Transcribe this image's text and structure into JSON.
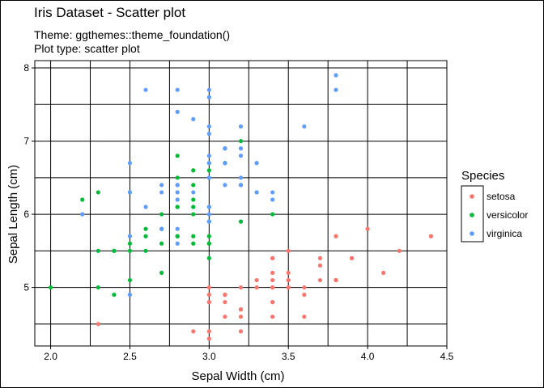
{
  "chart_data": {
    "type": "scatter",
    "title": "Iris Dataset - Scatter plot",
    "subtitle_lines": [
      "Theme: ggthemes::theme_foundation()",
      "Plot type: scatter plot"
    ],
    "xlabel": "Sepal Width (cm)",
    "ylabel": "Sepal Length (cm)",
    "xlim": [
      1.9,
      4.5
    ],
    "ylim": [
      4.2,
      8.1
    ],
    "x_ticks": [
      2.0,
      2.5,
      3.0,
      3.5,
      4.0,
      4.5
    ],
    "x_tick_labels": [
      "2.0",
      "2.5",
      "3.0",
      "3.5",
      "4.0",
      "4.5"
    ],
    "y_ticks": [
      5,
      6,
      7,
      8
    ],
    "y_tick_labels": [
      "5",
      "6",
      "7",
      "8"
    ],
    "grid": true,
    "legend_title": "Species",
    "legend_position": "right",
    "series": [
      {
        "name": "setosa",
        "color": "#F8766D",
        "points": [
          [
            3.5,
            5.1
          ],
          [
            3.0,
            4.9
          ],
          [
            3.2,
            4.7
          ],
          [
            3.1,
            4.6
          ],
          [
            3.6,
            5.0
          ],
          [
            3.9,
            5.4
          ],
          [
            3.4,
            4.6
          ],
          [
            3.4,
            5.0
          ],
          [
            2.9,
            4.4
          ],
          [
            3.1,
            4.9
          ],
          [
            3.7,
            5.4
          ],
          [
            3.4,
            4.8
          ],
          [
            3.0,
            4.8
          ],
          [
            3.0,
            4.3
          ],
          [
            4.0,
            5.8
          ],
          [
            4.4,
            5.7
          ],
          [
            3.9,
            5.4
          ],
          [
            3.5,
            5.1
          ],
          [
            3.8,
            5.7
          ],
          [
            3.8,
            5.1
          ],
          [
            3.4,
            5.4
          ],
          [
            3.7,
            5.1
          ],
          [
            3.6,
            4.6
          ],
          [
            3.3,
            5.1
          ],
          [
            3.4,
            4.8
          ],
          [
            3.0,
            5.0
          ],
          [
            3.4,
            5.0
          ],
          [
            3.5,
            5.2
          ],
          [
            3.4,
            5.2
          ],
          [
            3.2,
            4.7
          ],
          [
            3.1,
            4.8
          ],
          [
            3.4,
            5.4
          ],
          [
            4.1,
            5.2
          ],
          [
            4.2,
            5.5
          ],
          [
            3.1,
            4.9
          ],
          [
            3.2,
            5.0
          ],
          [
            3.5,
            5.5
          ],
          [
            3.6,
            4.9
          ],
          [
            3.0,
            4.4
          ],
          [
            3.4,
            5.1
          ],
          [
            3.5,
            5.0
          ],
          [
            2.3,
            4.5
          ],
          [
            3.2,
            4.4
          ],
          [
            3.5,
            5.0
          ],
          [
            3.8,
            5.1
          ],
          [
            3.0,
            4.8
          ],
          [
            3.8,
            5.1
          ],
          [
            3.2,
            4.6
          ],
          [
            3.7,
            5.3
          ],
          [
            3.3,
            5.0
          ]
        ]
      },
      {
        "name": "versicolor",
        "color": "#00BA38",
        "points": [
          [
            3.2,
            7.0
          ],
          [
            3.2,
            6.4
          ],
          [
            3.1,
            6.9
          ],
          [
            2.3,
            5.5
          ],
          [
            2.8,
            6.5
          ],
          [
            2.8,
            5.7
          ],
          [
            3.3,
            6.3
          ],
          [
            2.4,
            4.9
          ],
          [
            2.9,
            6.6
          ],
          [
            2.7,
            5.2
          ],
          [
            2.0,
            5.0
          ],
          [
            3.0,
            5.9
          ],
          [
            2.2,
            6.0
          ],
          [
            2.9,
            6.1
          ],
          [
            2.9,
            5.6
          ],
          [
            3.1,
            6.7
          ],
          [
            3.0,
            5.6
          ],
          [
            2.7,
            5.8
          ],
          [
            2.2,
            6.2
          ],
          [
            2.5,
            5.6
          ],
          [
            3.2,
            5.9
          ],
          [
            2.8,
            6.1
          ],
          [
            2.5,
            6.3
          ],
          [
            2.8,
            6.1
          ],
          [
            2.9,
            6.4
          ],
          [
            3.0,
            6.6
          ],
          [
            2.8,
            6.8
          ],
          [
            3.0,
            6.7
          ],
          [
            2.9,
            6.0
          ],
          [
            2.6,
            5.7
          ],
          [
            2.4,
            5.5
          ],
          [
            2.4,
            5.5
          ],
          [
            2.7,
            5.8
          ],
          [
            2.7,
            6.0
          ],
          [
            3.0,
            5.4
          ],
          [
            3.4,
            6.0
          ],
          [
            3.1,
            6.7
          ],
          [
            2.3,
            6.3
          ],
          [
            3.0,
            5.6
          ],
          [
            2.5,
            5.5
          ],
          [
            2.6,
            5.5
          ],
          [
            3.0,
            6.1
          ],
          [
            2.6,
            5.8
          ],
          [
            2.3,
            5.0
          ],
          [
            2.7,
            5.6
          ],
          [
            3.0,
            5.7
          ],
          [
            2.9,
            5.7
          ],
          [
            2.9,
            6.2
          ],
          [
            2.5,
            5.1
          ],
          [
            2.8,
            5.7
          ]
        ]
      },
      {
        "name": "virginica",
        "color": "#619CFF",
        "points": [
          [
            3.3,
            6.3
          ],
          [
            2.7,
            5.8
          ],
          [
            3.0,
            7.1
          ],
          [
            2.9,
            6.3
          ],
          [
            3.0,
            6.5
          ],
          [
            3.0,
            7.6
          ],
          [
            2.5,
            4.9
          ],
          [
            2.9,
            7.3
          ],
          [
            2.5,
            6.7
          ],
          [
            3.6,
            7.2
          ],
          [
            3.2,
            6.5
          ],
          [
            2.7,
            6.4
          ],
          [
            3.0,
            6.8
          ],
          [
            2.5,
            5.7
          ],
          [
            2.8,
            5.8
          ],
          [
            3.2,
            6.4
          ],
          [
            3.0,
            6.5
          ],
          [
            3.8,
            7.7
          ],
          [
            2.6,
            7.7
          ],
          [
            2.2,
            6.0
          ],
          [
            3.2,
            6.9
          ],
          [
            2.8,
            5.6
          ],
          [
            2.8,
            7.7
          ],
          [
            2.7,
            6.3
          ],
          [
            3.3,
            6.7
          ],
          [
            3.2,
            7.2
          ],
          [
            2.8,
            6.2
          ],
          [
            3.0,
            6.1
          ],
          [
            2.8,
            6.4
          ],
          [
            3.0,
            7.2
          ],
          [
            2.8,
            7.4
          ],
          [
            3.8,
            7.9
          ],
          [
            2.8,
            6.4
          ],
          [
            2.8,
            6.3
          ],
          [
            2.6,
            6.1
          ],
          [
            3.0,
            7.7
          ],
          [
            3.4,
            6.3
          ],
          [
            3.1,
            6.4
          ],
          [
            3.0,
            6.0
          ],
          [
            3.1,
            6.9
          ],
          [
            3.1,
            6.7
          ],
          [
            3.1,
            6.9
          ],
          [
            2.7,
            5.8
          ],
          [
            3.2,
            6.8
          ],
          [
            3.3,
            6.7
          ],
          [
            3.0,
            6.7
          ],
          [
            2.5,
            6.3
          ],
          [
            3.0,
            6.5
          ],
          [
            3.4,
            6.2
          ],
          [
            3.0,
            5.9
          ]
        ]
      }
    ]
  }
}
